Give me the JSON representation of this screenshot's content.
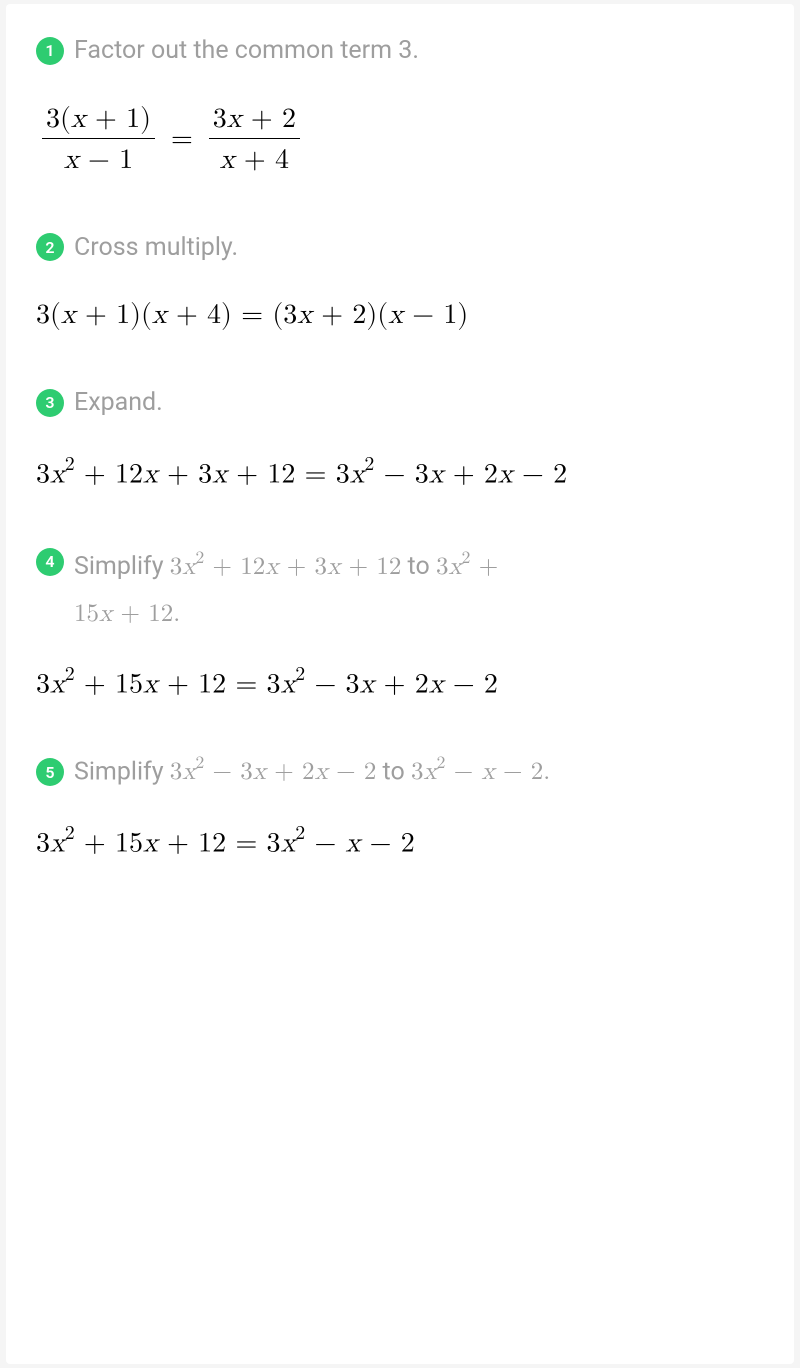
{
  "colors": {
    "badge_bg": "#2ecc71",
    "badge_text": "#ffffff",
    "step_text": "#9e9e9e",
    "math_text": "#000000",
    "card_bg": "#ffffff",
    "page_bg": "#f5f5f5"
  },
  "steps": {
    "s1": {
      "num": "1",
      "text": "Factor out the common term 3."
    },
    "s2": {
      "num": "2",
      "text": "Cross multiply."
    },
    "s3": {
      "num": "3",
      "text": "Expand."
    },
    "s4": {
      "num": "4",
      "prefix": "Simplify ",
      "expr1_a": "3",
      "expr1_b": " + 12",
      "expr1_c": " + 3",
      "expr1_d": " + 12",
      "mid": " to ",
      "expr2_a": "3",
      "expr2_b": " +",
      "line2_a": "15",
      "line2_b": " + 12."
    },
    "s5": {
      "num": "5",
      "prefix": "Simplify ",
      "e1_a": "3",
      "e1_b": " − 3",
      "e1_c": " + 2",
      "e1_d": " − 2",
      "mid": " to ",
      "e2_a": "3",
      "e2_b": " − ",
      "e2_c": " − 2."
    }
  },
  "math": {
    "m1": {
      "frac1_num_a": "3(",
      "frac1_num_b": " + 1)",
      "frac1_den_a": " − 1",
      "frac2_num_a": "3",
      "frac2_num_b": " + 2",
      "frac2_den_a": " + 4"
    },
    "m2_a": "3(",
    "m2_b": " + 1)(",
    "m2_c": " + 4) = (3",
    "m2_d": " + 2)(",
    "m2_e": " − 1)",
    "m3_a": "3",
    "m3_b": " + 12",
    "m3_c": " + 3",
    "m3_d": " + 12 = 3",
    "m3_e": " − 3",
    "m3_f": " + 2",
    "m3_g": " − 2",
    "m4_a": "3",
    "m4_b": " + 15",
    "m4_c": " + 12 = 3",
    "m4_d": " − 3",
    "m4_e": " + 2",
    "m4_f": " − 2",
    "m5_a": "3",
    "m5_b": " + 15",
    "m5_c": " + 12 = 3",
    "m5_d": " − ",
    "m5_e": " − 2"
  }
}
